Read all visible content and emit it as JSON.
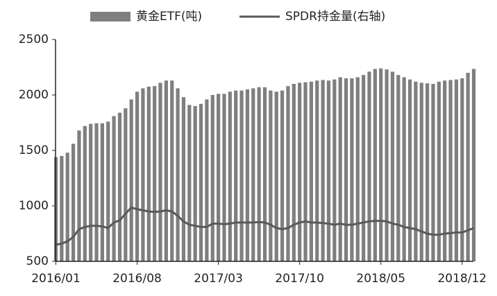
{
  "chart_data": {
    "type": "bar",
    "categories": [
      "2016/01",
      null,
      null,
      null,
      null,
      null,
      null,
      null,
      null,
      null,
      null,
      null,
      null,
      null,
      "2016/08",
      null,
      null,
      null,
      null,
      null,
      null,
      null,
      null,
      null,
      null,
      null,
      null,
      null,
      "2017/03",
      null,
      null,
      null,
      null,
      null,
      null,
      null,
      null,
      null,
      null,
      null,
      null,
      null,
      "2017/10",
      null,
      null,
      null,
      null,
      null,
      null,
      null,
      null,
      null,
      null,
      null,
      null,
      null,
      "2018/05",
      null,
      null,
      null,
      null,
      null,
      null,
      null,
      null,
      null,
      null,
      null,
      null,
      null,
      "2018/12",
      null,
      null
    ],
    "series": [
      {
        "name": "黄金ETF(吨)",
        "type": "bar",
        "color": "#7f7f7f",
        "values": [
          1440,
          1450,
          1480,
          1560,
          1680,
          1720,
          1740,
          1745,
          1745,
          1760,
          1810,
          1840,
          1880,
          1960,
          2030,
          2060,
          2075,
          2080,
          2110,
          2130,
          2130,
          2060,
          1980,
          1910,
          1900,
          1920,
          1960,
          2000,
          2010,
          2010,
          2030,
          2040,
          2040,
          2050,
          2060,
          2070,
          2070,
          2040,
          2030,
          2040,
          2080,
          2100,
          2110,
          2115,
          2120,
          2130,
          2135,
          2130,
          2140,
          2160,
          2150,
          2150,
          2160,
          2180,
          2210,
          2235,
          2240,
          2230,
          2210,
          2180,
          2160,
          2140,
          2120,
          2110,
          2105,
          2100,
          2120,
          2130,
          2135,
          2140,
          2150,
          2200,
          2235
        ]
      },
      {
        "name": "SPDR持金量(右轴)",
        "type": "line",
        "color": "#595959",
        "values": [
          650,
          660,
          680,
          720,
          790,
          810,
          820,
          820,
          815,
          800,
          850,
          870,
          930,
          985,
          970,
          960,
          950,
          945,
          950,
          960,
          950,
          910,
          860,
          830,
          820,
          810,
          810,
          840,
          840,
          835,
          840,
          850,
          850,
          850,
          850,
          855,
          850,
          830,
          800,
          790,
          800,
          830,
          850,
          860,
          850,
          850,
          845,
          840,
          830,
          840,
          830,
          830,
          840,
          850,
          860,
          865,
          865,
          860,
          840,
          830,
          810,
          800,
          790,
          770,
          750,
          740,
          740,
          750,
          755,
          760,
          760,
          780,
          800
        ]
      }
    ],
    "ylim": [
      500,
      2500
    ],
    "yticks": [
      500,
      1000,
      1500,
      2000,
      2500
    ],
    "legend": "top"
  }
}
